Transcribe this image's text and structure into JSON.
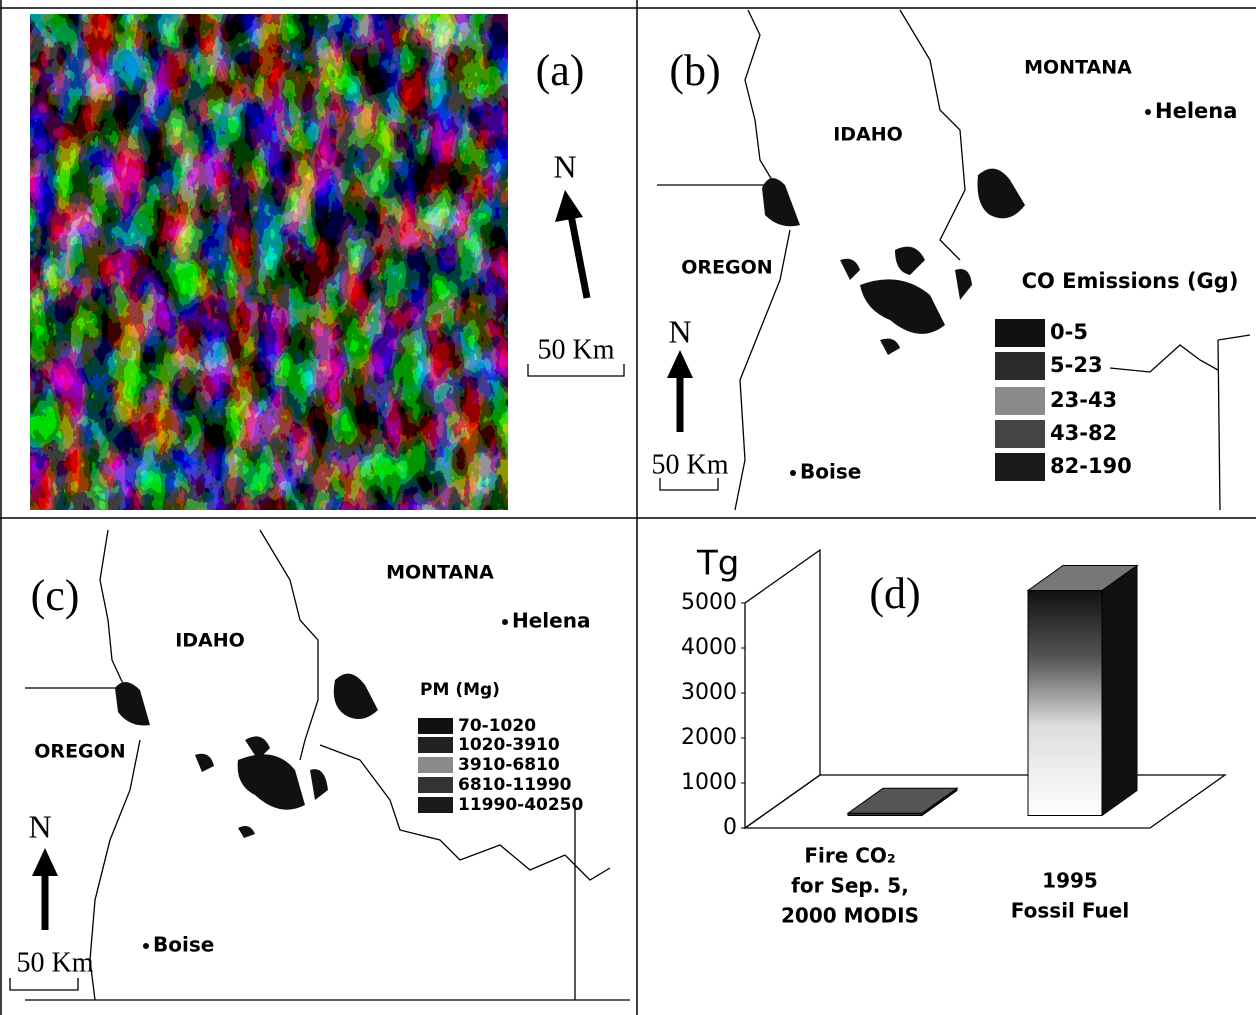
{
  "panel_a": {
    "label": "(a)",
    "north": "N",
    "scale": "50 Km"
  },
  "panel_b": {
    "label": "(b)",
    "states": [
      "MONTANA",
      "IDAHO",
      "OREGON"
    ],
    "cities": [
      "Helena",
      "Boise"
    ],
    "north": "N",
    "scale": "50 Km",
    "legend": {
      "title": "CO Emissions (Gg)",
      "items": [
        "0-5",
        "5-23",
        "23-43",
        "43-82",
        "82-190"
      ],
      "colors": [
        "#111",
        "#2a2a2a",
        "#8a8a8a",
        "#444",
        "#1a1a1a"
      ]
    }
  },
  "panel_c": {
    "label": "(c)",
    "states": [
      "MONTANA",
      "IDAHO",
      "OREGON"
    ],
    "cities": [
      "Helena",
      "Boise"
    ],
    "north": "N",
    "scale": "50 Km",
    "legend": {
      "title": "PM (Mg)",
      "items": [
        "70-1020",
        "1020-3910",
        "3910-6810",
        "6810-11990",
        "11990-40250"
      ],
      "colors": [
        "#111",
        "#222",
        "#8a8a8a",
        "#333",
        "#1a1a1a"
      ]
    }
  },
  "chart_data": {
    "type": "bar",
    "label": "(d)",
    "ylabel": "Tg",
    "categories": [
      [
        "Fire CO₂",
        "for Sep. 5,",
        "2000  MODIS"
      ],
      [
        "1995",
        "Fossil Fuel"
      ]
    ],
    "values": [
      50,
      5000
    ],
    "ylim": [
      0,
      5000
    ],
    "yticks": [
      0,
      1000,
      2000,
      3000,
      4000,
      5000
    ]
  }
}
